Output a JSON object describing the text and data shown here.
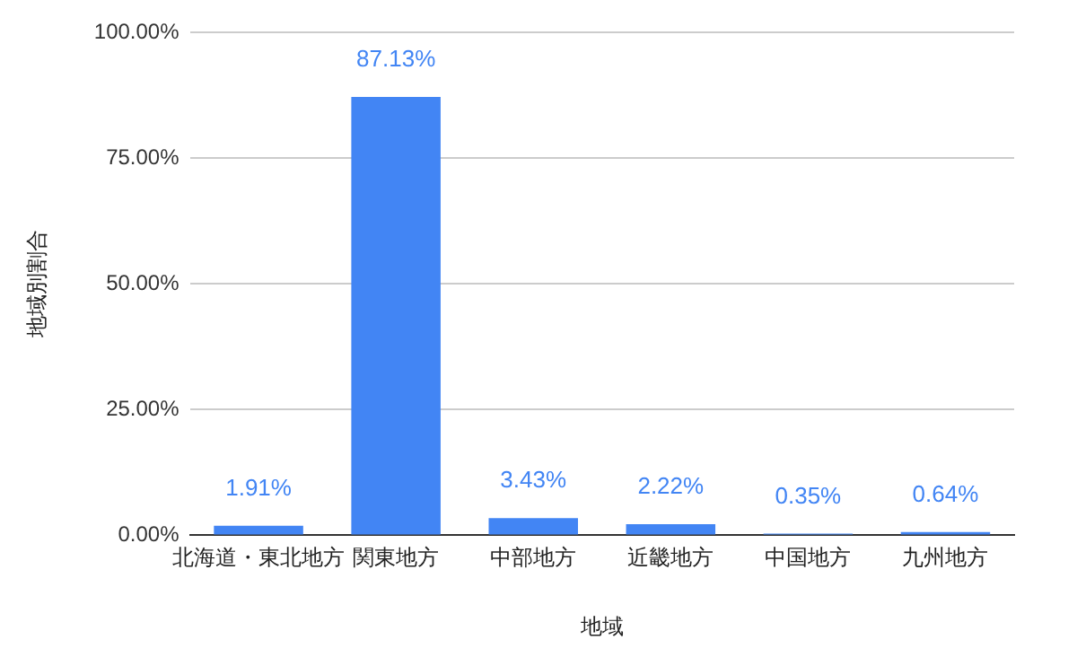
{
  "chart_data": {
    "type": "bar",
    "xlabel": "地域",
    "ylabel": "地域別割合",
    "categories": [
      "北海道・東北地方",
      "関東地方",
      "中部地方",
      "近畿地方",
      "中国地方",
      "九州地方"
    ],
    "values": [
      1.91,
      87.13,
      3.43,
      2.22,
      0.35,
      0.64
    ],
    "value_labels": [
      "1.91%",
      "87.13%",
      "3.43%",
      "2.22%",
      "0.35%",
      "0.64%"
    ],
    "color": "#4285f4",
    "ylim": [
      0,
      100
    ],
    "yticks": [
      {
        "value": 0,
        "label": "0.00%"
      },
      {
        "value": 25,
        "label": "25.00%"
      },
      {
        "value": 50,
        "label": "50.00%"
      },
      {
        "value": 75,
        "label": "75.00%"
      },
      {
        "value": 100,
        "label": "100.00%"
      }
    ],
    "grid": "y"
  }
}
